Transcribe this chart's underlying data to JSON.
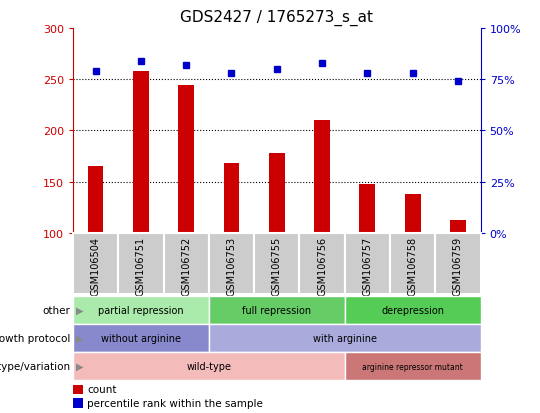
{
  "title": "GDS2427 / 1765273_s_at",
  "samples": [
    "GSM106504",
    "GSM106751",
    "GSM106752",
    "GSM106753",
    "GSM106755",
    "GSM106756",
    "GSM106757",
    "GSM106758",
    "GSM106759"
  ],
  "counts": [
    165,
    258,
    244,
    168,
    178,
    210,
    148,
    138,
    113
  ],
  "percentile_ranks": [
    79,
    84,
    82,
    78,
    80,
    83,
    78,
    78,
    74
  ],
  "ylim_left": [
    100,
    300
  ],
  "ylim_right": [
    0,
    100
  ],
  "yticks_left": [
    100,
    150,
    200,
    250,
    300
  ],
  "yticks_right": [
    0,
    25,
    50,
    75,
    100
  ],
  "bar_color": "#cc0000",
  "dot_color": "#0000cc",
  "bar_bottom": 100,
  "annotation_rows": [
    {
      "label": "other",
      "segments": [
        {
          "text": "partial repression",
          "start": 0,
          "end": 3,
          "color": "#aaeaaa"
        },
        {
          "text": "full repression",
          "start": 3,
          "end": 6,
          "color": "#66cc66"
        },
        {
          "text": "derepression",
          "start": 6,
          "end": 9,
          "color": "#55cc55"
        }
      ]
    },
    {
      "label": "growth protocol",
      "segments": [
        {
          "text": "without arginine",
          "start": 0,
          "end": 3,
          "color": "#8888cc"
        },
        {
          "text": "with arginine",
          "start": 3,
          "end": 9,
          "color": "#aaaadd"
        }
      ]
    },
    {
      "label": "genotype/variation",
      "segments": [
        {
          "text": "wild-type",
          "start": 0,
          "end": 6,
          "color": "#f4bbbb"
        },
        {
          "text": "arginine repressor mutant",
          "start": 6,
          "end": 9,
          "color": "#cc7777"
        }
      ]
    }
  ],
  "legend_items": [
    {
      "color": "#cc0000",
      "label": "count"
    },
    {
      "color": "#0000cc",
      "label": "percentile rank within the sample"
    }
  ],
  "xtick_bg_color": "#cccccc",
  "chart_bg_color": "#ffffff",
  "tick_label_color_left": "#cc0000",
  "tick_label_color_right": "#0000cc",
  "title_fontsize": 11,
  "axis_fontsize": 8,
  "annotation_fontsize": 8,
  "label_fontsize": 8,
  "sample_fontsize": 7
}
